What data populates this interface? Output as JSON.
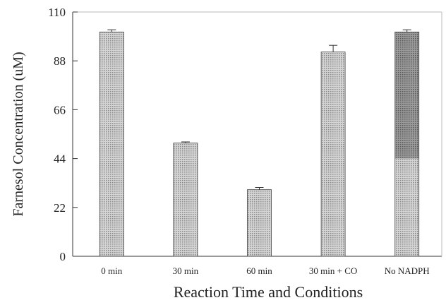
{
  "chart_data": {
    "type": "bar",
    "categories": [
      "0 min",
      "30 min",
      "60 min",
      "30 min + CO",
      "No NADPH"
    ],
    "values": [
      101,
      51,
      30,
      92,
      101
    ],
    "errors": [
      1,
      0.5,
      1,
      3,
      1
    ],
    "xlabel": "Reaction Time and Conditions",
    "ylabel": "Farnesol Concentration (uM)",
    "ylim": [
      0,
      110
    ],
    "yticks": [
      0,
      22,
      44,
      66,
      88,
      110
    ],
    "grid": false,
    "legend": "none",
    "bar_fill": "#c8c8c8",
    "bar_fill_dark": "#9c9c9c",
    "bar_stroke": "#444444"
  }
}
